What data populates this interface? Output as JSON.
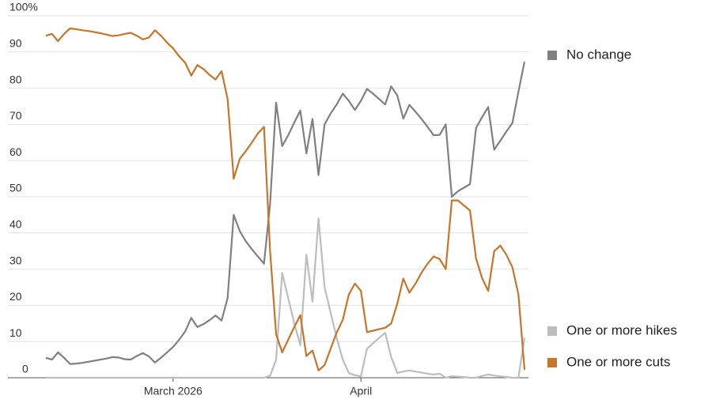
{
  "chart_data": {
    "type": "line",
    "categories": [
      null,
      null,
      null,
      null,
      null,
      null,
      null,
      null,
      null,
      null,
      null,
      null,
      null,
      null,
      null,
      null,
      null,
      null,
      null,
      null,
      null,
      "March 2026",
      null,
      null,
      null,
      null,
      null,
      null,
      null,
      null,
      null,
      null,
      null,
      null,
      null,
      null,
      null,
      null,
      null,
      null,
      null,
      null,
      null,
      null,
      null,
      null,
      null,
      null,
      null,
      null,
      null,
      null,
      "April",
      null,
      null,
      null,
      null,
      null,
      null,
      null,
      null,
      null,
      null,
      null,
      null,
      null,
      null,
      null,
      null,
      null,
      null,
      null,
      null,
      null,
      null,
      null,
      null,
      null,
      null,
      null
    ],
    "series": [
      {
        "name": "No change",
        "color": "#808080",
        "values": [
          5.5,
          5,
          7,
          5.5,
          3.8,
          3.9,
          4.1,
          4.4,
          4.7,
          5,
          5.3,
          5.7,
          5.6,
          5.1,
          5,
          6,
          6.8,
          5.9,
          4.2,
          5.5,
          7,
          8.5,
          10.5,
          12.8,
          16.5,
          14,
          14.8,
          15.9,
          17.2,
          15.8,
          22,
          45,
          40.5,
          37.7,
          35.5,
          33.5,
          31.5,
          48,
          76,
          64,
          67,
          70.5,
          73.8,
          62,
          71.5,
          56,
          70,
          73,
          75.5,
          78.5,
          76.5,
          74,
          76.5,
          79.8,
          78.5,
          77,
          75.5,
          80.5,
          78,
          71.6,
          75.4,
          73.5,
          71.5,
          69.3,
          67,
          67.1,
          70,
          50,
          51.5,
          52.5,
          53.5,
          69,
          72,
          74.8,
          63,
          65.5,
          68,
          70.4,
          79,
          87.3
        ]
      },
      {
        "name": "One or more hikes",
        "color": "#bdbdbd",
        "values": [
          0,
          0,
          0,
          0,
          0,
          0,
          0,
          0,
          0,
          0,
          0,
          0,
          0,
          0,
          0,
          0,
          0,
          0,
          0,
          0,
          0,
          0,
          0,
          0,
          0,
          0,
          0,
          0,
          0,
          0,
          0,
          0,
          0,
          0,
          0,
          0,
          0,
          0.5,
          5,
          29,
          22,
          15,
          9,
          34,
          21,
          44,
          25,
          18,
          11,
          5,
          1.3,
          0.7,
          0.4,
          8,
          9.5,
          11,
          12.4,
          5.7,
          1.3,
          1.7,
          2,
          1.7,
          1.4,
          1.1,
          0.9,
          1.1,
          0,
          0.4,
          0.3,
          0.2,
          0,
          0,
          0.5,
          0.9,
          0.6,
          0.4,
          0.2,
          0,
          0,
          11
        ]
      },
      {
        "name": "One or more cuts",
        "color": "#c8752a",
        "values": [
          94.5,
          95,
          93,
          95,
          96.5,
          96.3,
          96,
          95.8,
          95.5,
          95.2,
          94.8,
          94.4,
          94.6,
          95,
          95.3,
          94.5,
          93.5,
          94,
          96,
          94.5,
          92.6,
          91,
          88.8,
          87,
          83.5,
          86.4,
          85.3,
          83.7,
          82.4,
          84.7,
          77,
          55,
          60.5,
          62.6,
          65,
          67.5,
          69.3,
          35,
          12,
          7,
          10.5,
          14,
          17.3,
          6,
          7.5,
          2,
          3.5,
          8,
          12.5,
          16,
          23,
          26,
          24,
          12.6,
          13,
          13.4,
          13.8,
          15,
          20.5,
          27.4,
          23.5,
          26,
          29,
          31.5,
          33.5,
          32.8,
          30,
          49,
          49,
          47.6,
          46.2,
          33,
          27.5,
          24,
          35,
          36.5,
          34,
          30.5,
          23,
          2.2
        ]
      }
    ],
    "ylim": [
      0,
      100
    ],
    "yticks": [
      0,
      10,
      20,
      30,
      40,
      50,
      60,
      70,
      80,
      90,
      {
        "value": 100,
        "label": "100%"
      }
    ],
    "grid": true,
    "legend": "right"
  }
}
